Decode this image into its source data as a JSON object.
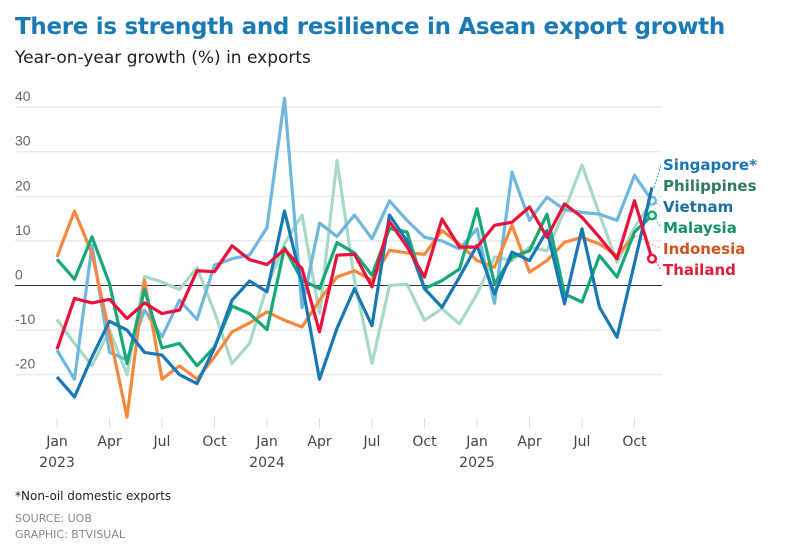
{
  "title": "There is strength and resilience in Asean export growth",
  "subtitle": "Year-on-year growth (%) in exports",
  "footnote": "*Non-oil domestic exports",
  "source": "SOURCE: UOB",
  "graphic": "GRAPHIC: BTVISUAL",
  "chart_data": {
    "type": "line",
    "title": "There is strength and resilience in Asean export growth",
    "ylabel": "Year-on-year growth (%) in exports",
    "ylim": [
      -30,
      45
    ],
    "yticks": [
      40,
      30,
      20,
      10,
      0,
      -10,
      -20
    ],
    "grid": true,
    "legend": "right, labels at line ends",
    "x_start": "2023-01",
    "x_end": "2025-11",
    "xtick_labels": [
      {
        "month": "2023-01",
        "label": "Jan",
        "year": "2023"
      },
      {
        "month": "2023-04",
        "label": "Apr",
        "year": ""
      },
      {
        "month": "2023-07",
        "label": "Jul",
        "year": ""
      },
      {
        "month": "2023-10",
        "label": "Oct",
        "year": ""
      },
      {
        "month": "2024-01",
        "label": "Jan",
        "year": "2024"
      },
      {
        "month": "2024-04",
        "label": "Apr",
        "year": ""
      },
      {
        "month": "2024-07",
        "label": "Jul",
        "year": ""
      },
      {
        "month": "2024-10",
        "label": "Oct",
        "year": ""
      },
      {
        "month": "2025-01",
        "label": "Jan",
        "year": "2025"
      },
      {
        "month": "2025-04",
        "label": "Apr",
        "year": ""
      },
      {
        "month": "2025-07",
        "label": "Jul",
        "year": ""
      },
      {
        "month": "2025-10",
        "label": "Oct",
        "year": ""
      }
    ],
    "series": [
      {
        "name": "Philippines",
        "color": "#a6dac4",
        "label_color": "#2e7d5a",
        "marker": true,
        "values": [
          -7.6,
          -13,
          -18,
          -10,
          -20,
          2,
          0.8,
          -0.9,
          4,
          -6,
          -17.5,
          -13,
          -0.3,
          9.4,
          15.8,
          -6.3,
          28,
          1.2,
          -17.5,
          0,
          0.3,
          -7.8,
          -5.2,
          -8.6,
          -1.9,
          6.4,
          5.6,
          8.6,
          7.8,
          16.8,
          27,
          16,
          5.2,
          13,
          19
        ]
      },
      {
        "name": "Vietnam",
        "color": "#6fb7dd",
        "label_color": "#1a6fa0",
        "marker": true,
        "values": [
          -14.5,
          -21,
          9,
          -15,
          -16.7,
          -5.5,
          -11.5,
          -3.3,
          -7.6,
          4.6,
          6,
          6.8,
          13,
          42,
          -5,
          14,
          11,
          15.8,
          10.5,
          19,
          14.6,
          10.8,
          10,
          8.2,
          12.7,
          -4,
          25.4,
          14.6,
          19.8,
          17,
          16.4,
          16,
          14.6,
          24.7,
          19
        ]
      },
      {
        "name": "Indonesia",
        "color": "#f5883d",
        "label_color": "#d0531f",
        "marker": false,
        "values": [
          6.4,
          16.7,
          7.2,
          -10.8,
          -29.5,
          1.2,
          -21,
          -18,
          -21,
          -16,
          -10.4,
          -8.4,
          -5.9,
          -7.8,
          -9.3,
          -3.3,
          1.9,
          3.3,
          1.2,
          7.9,
          7.3,
          7,
          12.3,
          9.3,
          5.6,
          4.1,
          13.5,
          3,
          5.6,
          9.7,
          10.8,
          9.3,
          6.7,
          11.2,
          null
        ]
      },
      {
        "name": "Malaysia",
        "color": "#16a878",
        "label_color": "#17935f",
        "marker": true,
        "values": [
          5.9,
          1.4,
          10.9,
          0.4,
          -17.5,
          -0.9,
          -14,
          -13,
          -18,
          -13.8,
          -4.6,
          -6.3,
          -9.9,
          8.5,
          1.2,
          -0.7,
          9.6,
          7.3,
          2.3,
          12.8,
          12,
          -0.7,
          1.1,
          3.7,
          17.2,
          0.4,
          6.4,
          7.8,
          16,
          -1.9,
          -3.7,
          6.7,
          1.9,
          12,
          15.7
        ]
      },
      {
        "name": "Singapore*",
        "color": "#1878b4",
        "label_color": "#1b75b0",
        "marker": false,
        "values": [
          -20.5,
          -25,
          -16,
          -8,
          -10,
          -15,
          -15.6,
          -20,
          -22,
          -14,
          -3.3,
          1,
          -1.4,
          16.7,
          0.5,
          -21,
          -9.6,
          -0.7,
          -9,
          15.8,
          10,
          -0.7,
          -4.9,
          1.9,
          9,
          -1.9,
          7.5,
          5.6,
          12.3,
          -4.1,
          12.7,
          -4.9,
          -11.6,
          5,
          22
        ]
      },
      {
        "name": "Thailand",
        "color": "#e8123c",
        "label_color": "#e01d3d",
        "marker": true,
        "values": [
          -14.3,
          -2.9,
          -3.9,
          -3.1,
          -7.4,
          -3.9,
          -6.3,
          -5.5,
          3.3,
          3.1,
          8.9,
          5.8,
          4.7,
          8.1,
          3.8,
          -10.4,
          6.8,
          7,
          -0.3,
          14.3,
          8.7,
          1.9,
          14.9,
          8.6,
          8.6,
          13.5,
          14.2,
          17.6,
          10.8,
          18.3,
          15.3,
          10.8,
          6,
          19,
          6
        ]
      }
    ],
    "legend_order": [
      "Singapore*",
      "Philippines",
      "Vietnam",
      "Malaysia",
      "Indonesia",
      "Thailand"
    ]
  }
}
